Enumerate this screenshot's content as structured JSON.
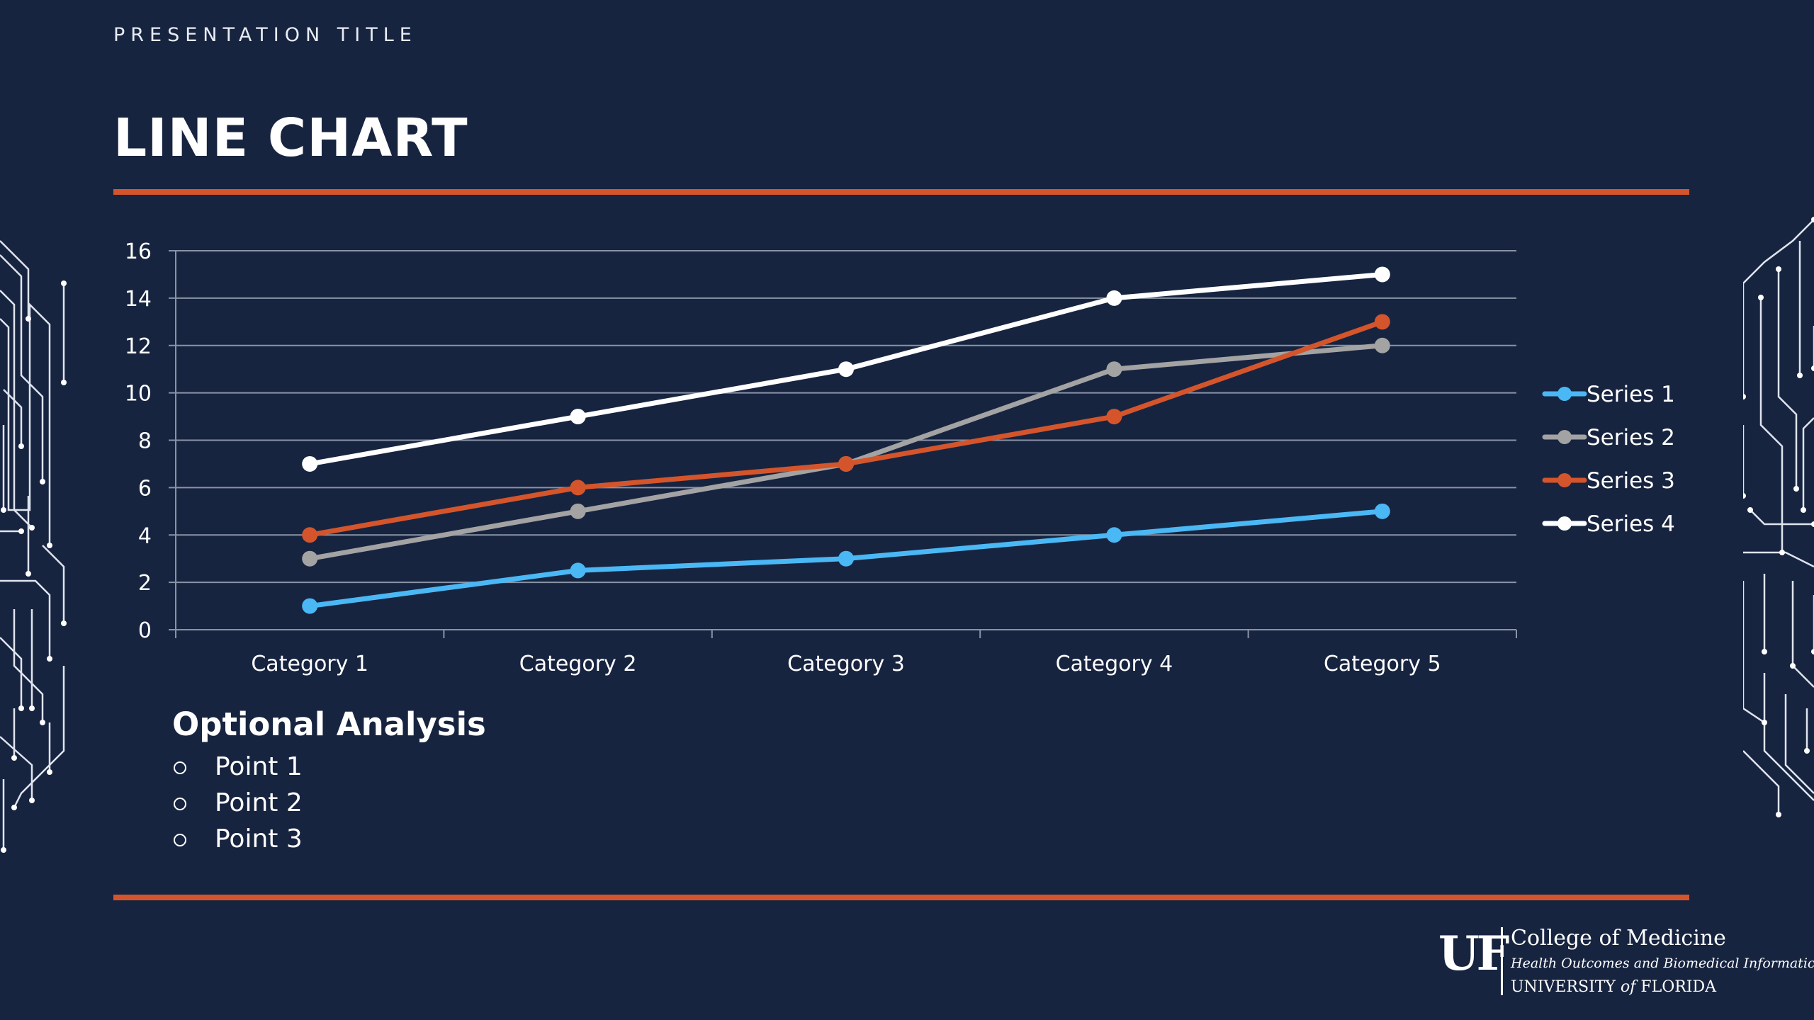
{
  "slide": {
    "presentation_title": "PRESENTATION TITLE",
    "title": "LINE CHART"
  },
  "colors": {
    "background": "#172440",
    "accent": "#d4552b",
    "series_1": "#4ab8f5",
    "series_2": "#a3a3a3",
    "series_3": "#d4552b",
    "series_4": "#ffffff"
  },
  "chart_data": {
    "type": "line",
    "categories": [
      "Category 1",
      "Category 2",
      "Category 3",
      "Category 4",
      "Category 5"
    ],
    "series": [
      {
        "name": "Series 1",
        "values": [
          1,
          2.5,
          3,
          4,
          5
        ]
      },
      {
        "name": "Series 2",
        "values": [
          3,
          5,
          7,
          11,
          12
        ]
      },
      {
        "name": "Series 3",
        "values": [
          4,
          6,
          7,
          9,
          13
        ]
      },
      {
        "name": "Series 4",
        "values": [
          7,
          9,
          11,
          14,
          15
        ]
      }
    ],
    "ylim": [
      0,
      16
    ],
    "yticks": [
      0,
      2,
      4,
      6,
      8,
      10,
      12,
      14,
      16
    ],
    "grid": true,
    "legend": "right"
  },
  "analysis": {
    "title": "Optional Analysis",
    "points": [
      "Point 1",
      "Point 2",
      "Point 3"
    ]
  },
  "logo": {
    "mark": "UF",
    "line1": "College of Medicine",
    "line2": "Health Outcomes and Biomedical Informatics",
    "line3_a": "UNIVERSITY ",
    "line3_b": "of",
    "line3_c": " FLORIDA"
  }
}
